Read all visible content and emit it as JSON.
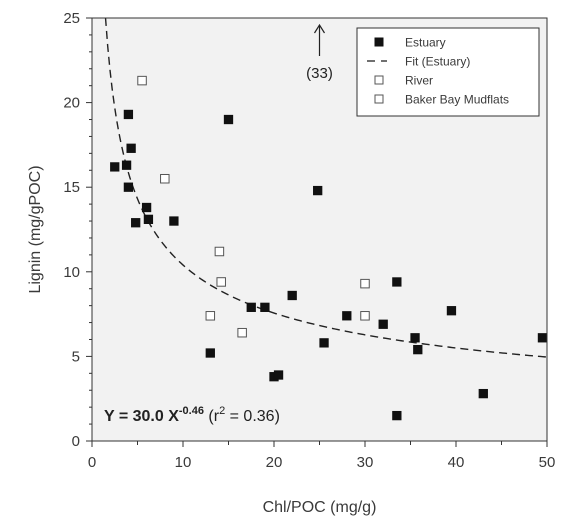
{
  "chart_data": {
    "type": "scatter",
    "xlabel": "Chl/POC (mg/g)",
    "ylabel": "Lignin (mg/gPOC)",
    "xlim": [
      0,
      50
    ],
    "ylim": [
      0,
      25
    ],
    "xticks": [
      "0",
      "10",
      "20",
      "30",
      "40",
      "50"
    ],
    "yticks": [
      "0",
      "5",
      "10",
      "15",
      "20",
      "25"
    ],
    "grid": false,
    "legend_position": "top-right",
    "series": [
      {
        "name": "Estuary",
        "marker": "filled-square",
        "points": [
          [
            2.5,
            16.2
          ],
          [
            3.8,
            16.3
          ],
          [
            4.0,
            15.0
          ],
          [
            4.0,
            19.3
          ],
          [
            4.3,
            17.3
          ],
          [
            4.8,
            12.9
          ],
          [
            6.0,
            13.8
          ],
          [
            6.2,
            13.1
          ],
          [
            9.0,
            13.0
          ],
          [
            13.0,
            5.2
          ],
          [
            15.0,
            19.0
          ],
          [
            17.5,
            7.9
          ],
          [
            19.0,
            7.9
          ],
          [
            20.0,
            3.8
          ],
          [
            20.5,
            3.9
          ],
          [
            22.0,
            8.6
          ],
          [
            24.8,
            14.8
          ],
          [
            25.5,
            5.8
          ],
          [
            28.0,
            7.4
          ],
          [
            32.0,
            6.9
          ],
          [
            33.5,
            1.5
          ],
          [
            33.5,
            9.4
          ],
          [
            35.5,
            6.1
          ],
          [
            35.8,
            5.4
          ],
          [
            39.5,
            7.7
          ],
          [
            43.0,
            2.8
          ],
          [
            49.5,
            6.1
          ]
        ]
      },
      {
        "name": "Fit (Estuary)",
        "style": "dashed",
        "equation": {
          "a": 30.0,
          "b": -0.46
        }
      },
      {
        "name": "River",
        "marker": "open-square",
        "points": [
          [
            5.5,
            21.3
          ],
          [
            8.0,
            15.5
          ],
          [
            14.0,
            11.2
          ],
          [
            14.2,
            9.4
          ],
          [
            13.0,
            7.4
          ],
          [
            16.5,
            6.4
          ],
          [
            30.0,
            9.3
          ],
          [
            30.0,
            7.4
          ]
        ]
      },
      {
        "name": "Baker Bay Mudflats",
        "marker": "open-square"
      }
    ],
    "annotations": {
      "arrow_label": "(33)",
      "arrow_x": 25,
      "equation_prefix": "Y = 30.0 X",
      "equation_exp": "-0.46",
      "r2_open": " (r",
      "r2_sup": "2",
      "r2_close": " = 0.36)"
    }
  }
}
